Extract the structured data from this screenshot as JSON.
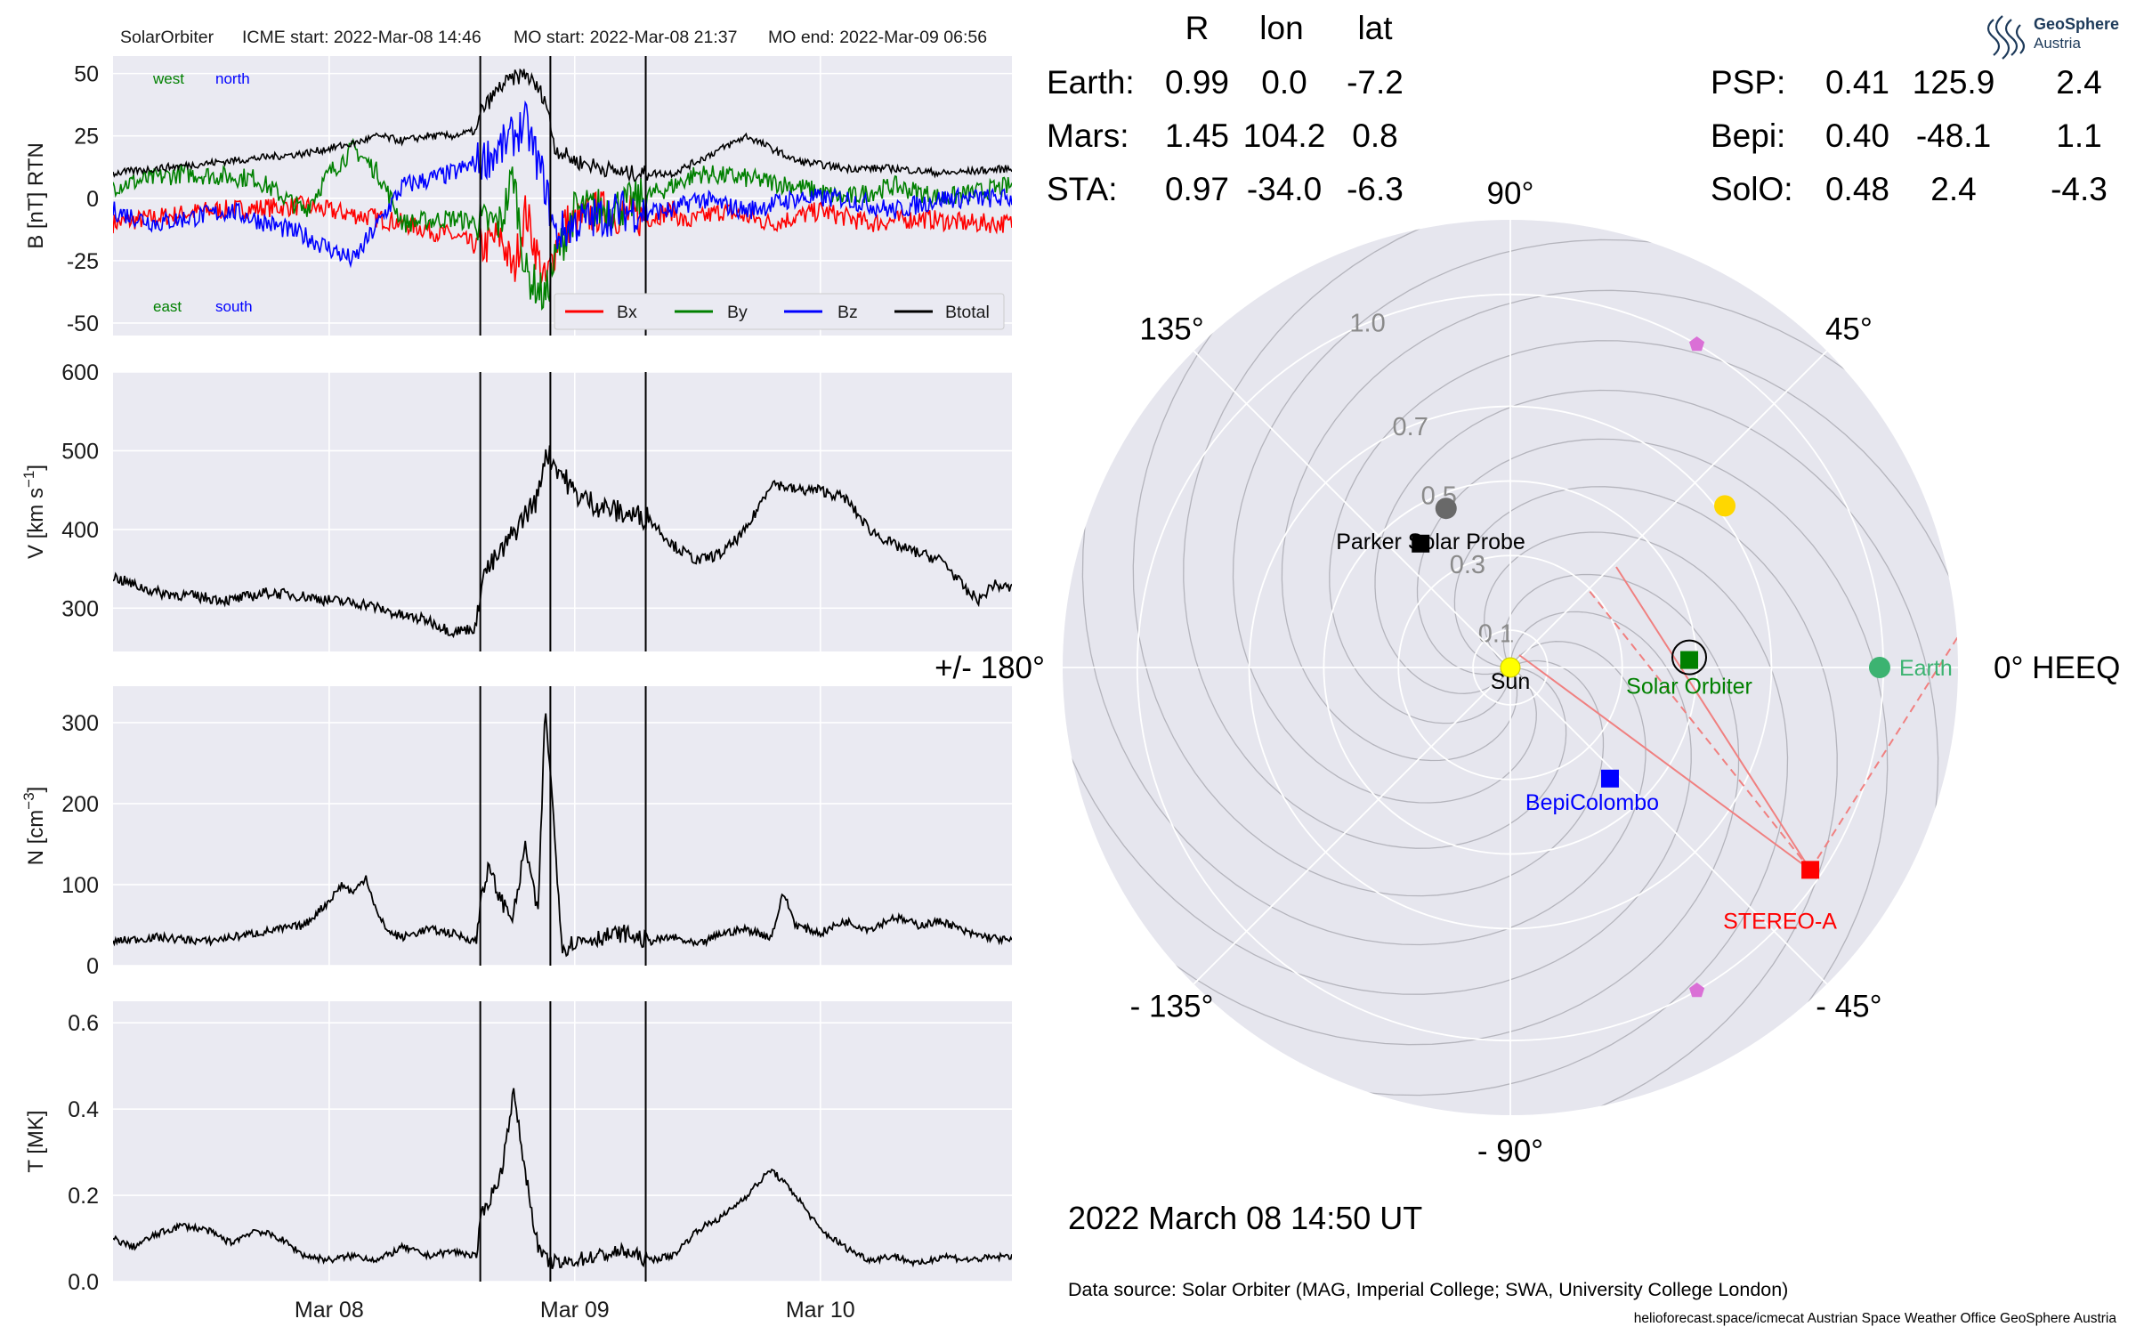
{
  "header": {
    "spacecraft": "SolarOrbiter",
    "icme_start": "ICME start: 2022-Mar-08 14:46",
    "mo_start": "MO start: 2022-Mar-08 21:37",
    "mo_end": "MO end: 2022-Mar-09 06:56"
  },
  "colors": {
    "bx": "#ff0000",
    "by": "#008000",
    "bz": "#0000ff",
    "btotal": "#000000",
    "earth": "#3cb371",
    "mars": "#ff6347",
    "sta": "#ff0000",
    "psp": "#000000",
    "bepi": "#0000ff",
    "solo": "#008000",
    "panel_bg": "#eaeaf2",
    "polar_bg": "#e6e6ee",
    "sun": "#ffff00",
    "venus": "#ffd700",
    "mercury": "#696969",
    "l4l5": "#da70d6"
  },
  "chart_data": [
    {
      "type": "line",
      "id": "magnetic-field",
      "ylabel": "B [nT] RTN",
      "ylim": [
        -55,
        57
      ],
      "yticks": [
        50,
        25,
        0,
        -25,
        -50
      ],
      "xticks": [
        "Mar 08",
        "Mar 09",
        "Mar 10"
      ],
      "x_unit": "days since 2022-03-07 00:00",
      "xlim": [
        0.12,
        3.78
      ],
      "corner_labels": {
        "top_left": "west",
        "top_right": "north",
        "bottom_left": "east",
        "bottom_right": "south"
      },
      "legend": {
        "position": "lower-right",
        "entries": [
          "Bx",
          "By",
          "Bz",
          "Btotal"
        ]
      },
      "series": [
        {
          "name": "Bx",
          "color": "#ff0000",
          "x": [
            0.12,
            0.5,
            0.9,
            1.0,
            1.2,
            1.3,
            1.5,
            1.62,
            1.7,
            1.75,
            1.8,
            1.88,
            1.92,
            1.95,
            2.0,
            2.1,
            2.3,
            2.4,
            2.45,
            2.6,
            2.8,
            3.0,
            3.2,
            3.4,
            3.6,
            3.78
          ],
          "y": [
            -10,
            -5,
            -3,
            -5,
            -8,
            -10,
            -15,
            -20,
            -15,
            -30,
            -5,
            -35,
            -20,
            -10,
            -10,
            -5,
            -8,
            -5,
            -10,
            -5,
            -10,
            -5,
            -10,
            -8,
            -10,
            -10
          ]
        },
        {
          "name": "By",
          "color": "#008000",
          "x": [
            0.12,
            0.4,
            0.7,
            0.9,
            1.0,
            1.1,
            1.2,
            1.3,
            1.5,
            1.62,
            1.7,
            1.75,
            1.8,
            1.88,
            1.92,
            2.0,
            2.2,
            2.4,
            2.5,
            2.7,
            2.9,
            3.1,
            3.3,
            3.5,
            3.78
          ],
          "y": [
            5,
            10,
            8,
            -5,
            10,
            20,
            10,
            -10,
            -8,
            -10,
            -10,
            10,
            -30,
            -40,
            -25,
            -5,
            -3,
            5,
            10,
            8,
            5,
            0,
            5,
            0,
            5
          ]
        },
        {
          "name": "Bz",
          "color": "#0000ff",
          "x": [
            0.12,
            0.3,
            0.6,
            0.9,
            1.0,
            1.1,
            1.2,
            1.3,
            1.5,
            1.62,
            1.7,
            1.75,
            1.8,
            1.88,
            1.92,
            2.0,
            2.2,
            2.4,
            2.5,
            2.7,
            2.9,
            3.1,
            3.3,
            3.5,
            3.78
          ],
          "y": [
            -5,
            -10,
            -5,
            -15,
            -20,
            -25,
            -10,
            5,
            10,
            15,
            20,
            25,
            30,
            5,
            -15,
            -10,
            -5,
            -5,
            0,
            -5,
            0,
            0,
            -5,
            0,
            0
          ]
        },
        {
          "name": "Btotal",
          "color": "#000000",
          "x": [
            0.12,
            0.3,
            0.6,
            0.9,
            1.0,
            1.1,
            1.2,
            1.3,
            1.4,
            1.5,
            1.6,
            1.62,
            1.7,
            1.75,
            1.8,
            1.88,
            1.92,
            2.0,
            2.2,
            2.4,
            2.5,
            2.7,
            2.9,
            3.1,
            3.3,
            3.5,
            3.78
          ],
          "y": [
            10,
            12,
            15,
            18,
            20,
            22,
            25,
            23,
            25,
            25,
            27,
            35,
            45,
            48,
            50,
            40,
            20,
            15,
            10,
            10,
            15,
            25,
            15,
            12,
            12,
            10,
            12
          ]
        }
      ]
    },
    {
      "type": "line",
      "id": "velocity",
      "ylabel": "V [km s",
      "ylabel_sup": "−1",
      "ylabel_end": "]",
      "ylim": [
        245,
        600
      ],
      "yticks": [
        600,
        500,
        400,
        300
      ],
      "xticks": [
        "Mar 08",
        "Mar 09",
        "Mar 10"
      ],
      "xlim": [
        0.12,
        3.78
      ],
      "series": [
        {
          "name": "V",
          "color": "#000000",
          "x": [
            0.12,
            0.2,
            0.3,
            0.45,
            0.6,
            0.75,
            0.9,
            1.0,
            1.15,
            1.3,
            1.4,
            1.5,
            1.6,
            1.62,
            1.7,
            1.8,
            1.85,
            1.88,
            1.95,
            2.0,
            2.1,
            2.2,
            2.3,
            2.4,
            2.5,
            2.6,
            2.7,
            2.8,
            2.9,
            3.0,
            3.1,
            3.2,
            3.3,
            3.4,
            3.5,
            3.6,
            3.65,
            3.7,
            3.78
          ],
          "y": [
            340,
            330,
            320,
            315,
            310,
            320,
            315,
            310,
            305,
            290,
            285,
            270,
            275,
            340,
            370,
            420,
            440,
            500,
            470,
            445,
            430,
            420,
            415,
            380,
            360,
            370,
            400,
            460,
            450,
            450,
            440,
            400,
            380,
            370,
            360,
            320,
            310,
            330,
            325
          ]
        }
      ]
    },
    {
      "type": "line",
      "id": "density",
      "ylabel": "N [cm",
      "ylabel_sup": "−3",
      "ylabel_end": "]",
      "ylim": [
        0,
        345
      ],
      "yticks": [
        300,
        200,
        100,
        0
      ],
      "xticks": [
        "Mar 08",
        "Mar 09",
        "Mar 10"
      ],
      "xlim": [
        0.12,
        3.78
      ],
      "series": [
        {
          "name": "N",
          "color": "#000000",
          "x": [
            0.12,
            0.3,
            0.5,
            0.7,
            0.9,
            1.0,
            1.05,
            1.1,
            1.15,
            1.2,
            1.25,
            1.3,
            1.4,
            1.5,
            1.6,
            1.62,
            1.65,
            1.7,
            1.75,
            1.8,
            1.85,
            1.88,
            1.9,
            1.95,
            2.0,
            2.1,
            2.2,
            2.3,
            2.4,
            2.5,
            2.6,
            2.7,
            2.8,
            2.85,
            2.9,
            3.0,
            3.1,
            3.2,
            3.3,
            3.4,
            3.5,
            3.6,
            3.78
          ],
          "y": [
            30,
            35,
            30,
            40,
            50,
            80,
            100,
            90,
            110,
            60,
            40,
            35,
            45,
            40,
            30,
            90,
            120,
            80,
            60,
            150,
            60,
            320,
            240,
            20,
            30,
            35,
            40,
            30,
            35,
            25,
            40,
            45,
            35,
            90,
            50,
            40,
            55,
            45,
            60,
            50,
            55,
            40,
            30
          ]
        }
      ]
    },
    {
      "type": "line",
      "id": "temperature",
      "ylabel": "T [MK]",
      "ylim": [
        0,
        0.65
      ],
      "yticks": [
        0.6,
        0.4,
        0.2,
        0.0
      ],
      "xticks": [
        "Mar 08",
        "Mar 09",
        "Mar 10"
      ],
      "xlim": [
        0.12,
        3.78
      ],
      "series": [
        {
          "name": "T",
          "color": "#000000",
          "x": [
            0.12,
            0.2,
            0.3,
            0.4,
            0.5,
            0.6,
            0.7,
            0.8,
            0.9,
            1.0,
            1.1,
            1.2,
            1.3,
            1.4,
            1.5,
            1.6,
            1.62,
            1.7,
            1.75,
            1.8,
            1.85,
            1.88,
            1.95,
            2.0,
            2.1,
            2.2,
            2.3,
            2.4,
            2.5,
            2.6,
            2.7,
            2.8,
            2.9,
            3.0,
            3.1,
            3.2,
            3.3,
            3.4,
            3.5,
            3.6,
            3.78
          ],
          "y": [
            0.1,
            0.08,
            0.11,
            0.13,
            0.12,
            0.09,
            0.12,
            0.1,
            0.06,
            0.05,
            0.06,
            0.05,
            0.08,
            0.06,
            0.07,
            0.06,
            0.15,
            0.25,
            0.44,
            0.25,
            0.08,
            0.05,
            0.04,
            0.05,
            0.06,
            0.07,
            0.05,
            0.06,
            0.12,
            0.15,
            0.2,
            0.26,
            0.2,
            0.12,
            0.08,
            0.05,
            0.06,
            0.04,
            0.06,
            0.05,
            0.06
          ]
        }
      ]
    },
    {
      "type": "scatter",
      "id": "polar-position-plot",
      "projection": "polar",
      "frame": "HEEQ",
      "angle_labels": [
        "0° HEEQ",
        "45°",
        "90°",
        "135°",
        "+/- 180°",
        "- 135°",
        "- 90°",
        "- 45°"
      ],
      "angle_values": [
        0,
        45,
        90,
        135,
        180,
        -135,
        -90,
        -45
      ],
      "radial_labels": [
        "0.1",
        "0.3",
        "0.5",
        "0.7",
        "1.0"
      ],
      "radial_values": [
        0.1,
        0.3,
        0.5,
        0.7,
        1.0
      ],
      "rlim": [
        0,
        1.2
      ],
      "points": [
        {
          "name": "Sun",
          "r": 0.0,
          "lon": 0.0,
          "color": "#ffff00",
          "marker": "circle",
          "label": "Sun"
        },
        {
          "name": "Earth",
          "r": 0.99,
          "lon": 0.0,
          "color": "#3cb371",
          "marker": "circle",
          "label": "Earth"
        },
        {
          "name": "Solar Orbiter",
          "r": 0.48,
          "lon": 2.4,
          "color": "#008000",
          "marker": "square",
          "label": "Solar Orbiter"
        },
        {
          "name": "STEREO-A",
          "r": 0.97,
          "lon": -34.0,
          "color": "#ff0000",
          "marker": "square",
          "label": "STEREO-A"
        },
        {
          "name": "BepiColombo",
          "r": 0.4,
          "lon": -48.1,
          "color": "#0000ff",
          "marker": "square",
          "label": "BepiColombo"
        },
        {
          "name": "Parker Solar Probe",
          "r": 0.41,
          "lon": 125.9,
          "color": "#000000",
          "marker": "square",
          "label": "Parker Solar Probe"
        },
        {
          "name": "Venus",
          "r": 0.72,
          "lon": 37.0,
          "color": "#ffd700",
          "marker": "circle",
          "label": ""
        },
        {
          "name": "Mercury",
          "r": 0.46,
          "lon": 112.0,
          "color": "#696969",
          "marker": "circle",
          "label": ""
        },
        {
          "name": "L4",
          "r": 1.0,
          "lon": 60.0,
          "color": "#da70d6",
          "marker": "pentagon",
          "label": ""
        },
        {
          "name": "L5",
          "r": 1.0,
          "lon": -60.0,
          "color": "#da70d6",
          "marker": "pentagon",
          "label": ""
        }
      ],
      "table": {
        "headers": [
          "R",
          "lon",
          "lat"
        ],
        "rows": [
          {
            "name": "Earth:",
            "R": "0.99",
            "lon": "0.0",
            "lat": "-7.2",
            "color": "#3cb371"
          },
          {
            "name": "Mars:",
            "R": "1.45",
            "lon": "104.2",
            "lat": "0.8",
            "color": "#ff6347"
          },
          {
            "name": "STA:",
            "R": "0.97",
            "lon": "-34.0",
            "lat": "-6.3",
            "color": "#ff0000"
          },
          {
            "name": "PSP:",
            "R": "0.41",
            "lon": "125.9",
            "lat": "2.4",
            "color": "#000000"
          },
          {
            "name": "Bepi:",
            "R": "0.40",
            "lon": "-48.1",
            "lat": "1.1",
            "color": "#0000ff"
          },
          {
            "name": "SolO:",
            "R": "0.48",
            "lon": "2.4",
            "lat": "-4.3",
            "color": "#008000"
          }
        ]
      }
    }
  ],
  "timestamp": "2022 March 08  14:50 UT",
  "data_source": "Data source: Solar Orbiter (MAG, Imperial College; SWA, University College London)",
  "footer": "helioforecast.space/icmecat   Austrian Space Weather Office   GeoSphere Austria",
  "logo": {
    "line1": "GeoSphere",
    "line2": "Austria"
  }
}
